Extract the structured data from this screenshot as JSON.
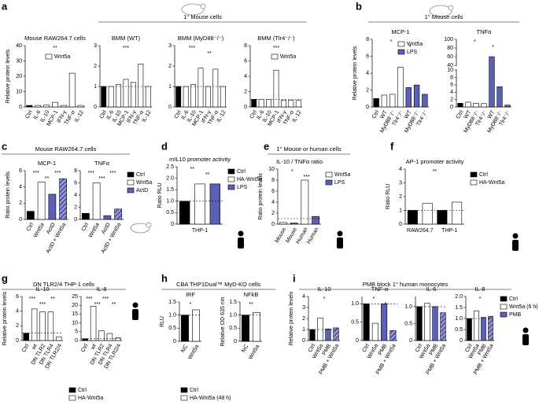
{
  "chart_data": [
    {
      "type": "bar",
      "panel": "a",
      "title": "Mouse RAW264.7 cells",
      "ylabel": "Relative protein levels",
      "categories": [
        "Ctrl",
        "IL-6",
        "IL-10",
        "MCP-1",
        "IFN-γ",
        "TNF-α",
        "IL-12"
      ],
      "values": [
        1,
        1,
        1.2,
        3,
        1,
        22,
        1
      ],
      "colors": [
        "#000000",
        "#ffffff",
        "#ffffff",
        "#ffffff",
        "#ffffff",
        "#ffffff",
        "#ffffff"
      ],
      "ylim": [
        0,
        40
      ],
      "yticks": [
        0,
        10,
        20,
        30,
        40
      ],
      "legend": [
        {
          "name": "Wnt5a",
          "color": "#ffffff"
        }
      ],
      "annotations": [
        "**"
      ]
    },
    {
      "type": "bar",
      "header": "1° Mouse cells",
      "title": "BMM (WT)",
      "categories": [
        "Ctrl",
        "IL-6",
        "IL-10",
        "MCP-1",
        "IFN-γ",
        "TNF-α",
        "IL-12"
      ],
      "values": [
        1,
        1,
        1.1,
        1.35,
        1.2,
        2.1,
        1
      ],
      "colors": [
        "#000000",
        "#ffffff",
        "#ffffff",
        "#ffffff",
        "#ffffff",
        "#ffffff",
        "#ffffff"
      ],
      "ylim": [
        0,
        3
      ],
      "yticks": [
        0,
        1,
        2,
        3
      ],
      "hline": 1,
      "annotations": [
        "***"
      ]
    },
    {
      "type": "bar",
      "title": "BMM (MyD88⁻/⁻)",
      "categories": [
        "Ctrl",
        "IL-6",
        "IL-10",
        "MCP-1",
        "IFN-γ",
        "TNF-α",
        "IL-12"
      ],
      "values": [
        1,
        1,
        1.1,
        1.9,
        1,
        1.85,
        1
      ],
      "colors": [
        "#000000",
        "#ffffff",
        "#ffffff",
        "#ffffff",
        "#ffffff",
        "#ffffff",
        "#ffffff"
      ],
      "ylim": [
        0,
        3
      ],
      "yticks": [
        0,
        1,
        2,
        3
      ],
      "hline": 1,
      "annotations": [
        "***",
        "**"
      ]
    },
    {
      "type": "bar",
      "title": "BMM (Tlr4⁻/⁻)",
      "categories": [
        "Ctrl",
        "IL-6",
        "IL-10",
        "MCP-1",
        "IFN-γ",
        "TNF-α",
        "IL-12"
      ],
      "values": [
        1,
        1,
        1,
        4.8,
        0.9,
        0.9,
        0.85
      ],
      "colors": [
        "#000000",
        "#ffffff",
        "#ffffff",
        "#ffffff",
        "#ffffff",
        "#ffffff",
        "#ffffff"
      ],
      "ylim": [
        0,
        8
      ],
      "yticks": [
        0,
        2,
        4,
        6,
        8
      ],
      "hline": 1,
      "legend": [
        {
          "name": "Wnt5a",
          "color": "#ffffff"
        }
      ],
      "annotations": [
        "***"
      ]
    },
    {
      "type": "bar",
      "panel": "b",
      "header": "1° Mouse cells",
      "title": "MCP-1",
      "ylabel": "Relative protein levels",
      "categories": [
        "Ctrl",
        "WT",
        "MyD88⁻/⁻",
        "Tlr4⁻/⁻",
        "WT",
        "MyD88⁻/⁻",
        "Tlr4⁻/⁻"
      ],
      "values": [
        1,
        1.4,
        1.5,
        4.7,
        2.3,
        2.6,
        1.5
      ],
      "colors": [
        "#000000",
        "#ffffff",
        "#ffffff",
        "#ffffff",
        "#5b5fb5",
        "#5b5fb5",
        "#5b5fb5"
      ],
      "ylim": [
        0,
        8
      ],
      "yticks": [
        0,
        2,
        4,
        6,
        8
      ],
      "legend": [
        {
          "name": "Wnt5a",
          "color": "#ffffff"
        },
        {
          "name": "LPS",
          "color": "#5b5fb5"
        }
      ],
      "annotations": [
        "*",
        "*"
      ]
    },
    {
      "type": "bar",
      "title": "TNFα",
      "categories": [
        "Ctrl",
        "WT",
        "MyD88⁻/⁻",
        "Tlr4⁻/⁻",
        "WT",
        "MyD88⁻/⁻",
        "Tlr4⁻/⁻"
      ],
      "values": [
        1,
        1.3,
        1,
        0.9,
        60,
        5.5,
        0.5
      ],
      "colors": [
        "#000000",
        "#ffffff",
        "#ffffff",
        "#ffffff",
        "#5b5fb5",
        "#5b5fb5",
        "#5b5fb5"
      ],
      "ylim": [
        0,
        100
      ],
      "ybreak": [
        10,
        40
      ],
      "yticks": [
        0,
        2,
        4,
        6,
        8,
        10,
        40,
        60,
        80,
        100
      ],
      "annotations": [
        "*",
        "*"
      ]
    },
    {
      "type": "bar",
      "panel": "c",
      "header": "Mouse RAW264.7 cells",
      "title": "MCP-1",
      "ylabel": "Ratio protein levels",
      "categories": [
        "Ctrl",
        "Wnt5a",
        "ActD",
        "ActD + Wnt5a"
      ],
      "values": [
        1,
        4.6,
        3.1,
        5
      ],
      "colors": [
        "#000000",
        "#ffffff",
        "#5b5fb5",
        "#5b5fb5"
      ],
      "hatched": [
        false,
        false,
        false,
        true
      ],
      "ylim": [
        0,
        6
      ],
      "yticks": [
        0,
        2,
        4,
        6
      ],
      "annotations": [
        "***",
        "**",
        "***"
      ]
    },
    {
      "type": "bar",
      "title": "TNFα",
      "categories": [
        "Ctrl",
        "Wnt5a",
        "ActD",
        "ActD + Wnt5a"
      ],
      "values": [
        1,
        6,
        0.6,
        1.7
      ],
      "colors": [
        "#000000",
        "#ffffff",
        "#5b5fb5",
        "#5b5fb5"
      ],
      "hatched": [
        false,
        false,
        false,
        true
      ],
      "ylim": [
        0,
        8
      ],
      "yticks": [
        0,
        2,
        4,
        6,
        8
      ],
      "legend": [
        {
          "name": "Ctrl",
          "color": "#000000"
        },
        {
          "name": "Wnt5a",
          "color": "#ffffff"
        },
        {
          "name": "ActD",
          "color": "#5b5fb5"
        }
      ],
      "annotations": [
        "***",
        "***",
        "***"
      ]
    },
    {
      "type": "bar",
      "panel": "d",
      "title": "mIL10 promoter activity",
      "ylabel": "Ratio RLU",
      "xlabels": [
        "THP-1"
      ],
      "categories": [
        null,
        null,
        null
      ],
      "values": [
        1,
        1.75,
        1.75
      ],
      "colors": [
        "#000000",
        "#ffffff",
        "#5b5fb5"
      ],
      "ylim": [
        0,
        2.5
      ],
      "yticks": [
        0,
        0.5,
        {
          "value": 1,
          "label": "1.0"
        },
        1.5,
        {
          "value": 2,
          "label": "2.0"
        },
        2.5
      ],
      "hline": 1,
      "legend": [
        {
          "name": "Ctrl",
          "color": "#000000"
        },
        {
          "name": "HA-Wnt5a",
          "color": "#ffffff"
        },
        {
          "name": "LPS",
          "color": "#5b5fb5"
        }
      ],
      "annotations": [
        "**",
        "**"
      ]
    },
    {
      "type": "bar",
      "panel": "e",
      "header": "1° Mouse or human cells",
      "title": "IL-10 / TNFα ratio",
      "ylabel": "Ratio protein levels",
      "categories": [
        "Mouse",
        "Mouse",
        "Human",
        "Human"
      ],
      "values": [
        0.3,
        0.2,
        8,
        1.4
      ],
      "colors": [
        "#ffffff",
        "#5b5fb5",
        "#ffffff",
        "#5b5fb5"
      ],
      "ylim": [
        0,
        10
      ],
      "yticks": [
        0,
        2,
        4,
        6,
        8,
        10
      ],
      "hline": 1,
      "legend": [
        {
          "name": "Wnt5a",
          "color": "#ffffff"
        },
        {
          "name": "LPS",
          "color": "#5b5fb5"
        }
      ],
      "annotations": [
        "*",
        "***"
      ]
    },
    {
      "type": "bar",
      "panel": "f",
      "title": "AP-1 promoter activity",
      "ylabel": "Ratio RLU",
      "xlabels": [
        "RAW264.7",
        "THP-1"
      ],
      "categories": [
        null,
        null,
        null,
        null
      ],
      "values": [
        1,
        1.5,
        1,
        1.6
      ],
      "colors": [
        "#000000",
        "#ffffff",
        "#000000",
        "#ffffff"
      ],
      "ylim": [
        0,
        4
      ],
      "yticks": [
        0,
        1,
        2,
        3,
        4
      ],
      "hline": 1,
      "legend": [
        {
          "name": "Ctrl",
          "color": "#000000"
        },
        {
          "name": "HA-Wnt5a",
          "color": "#ffffff"
        }
      ],
      "annotations": [
        "**"
      ]
    },
    {
      "type": "bar",
      "panel": "g",
      "header": "DN TLR2/4 THP-1 cells",
      "title": "IL-10",
      "ylabel": "Relative protein levels",
      "categories": [
        "Ctrl",
        "wt",
        "DN TLR2",
        "DN TLR4",
        "DN TLR2/4"
      ],
      "values": [
        1,
        4.3,
        3.9,
        3.9,
        0.5
      ],
      "colors": [
        "#000000",
        "#ffffff",
        "#ffffff",
        "#ffffff",
        "#ffffff"
      ],
      "ylim": [
        0,
        6
      ],
      "yticks": [
        0,
        2,
        4,
        6
      ],
      "hline": 1,
      "annotations": [
        "***",
        "***",
        "**"
      ]
    },
    {
      "type": "bar",
      "title": "IL-8",
      "categories": [
        "Ctrl",
        "wt",
        "DN TLR2",
        "DN TLR4",
        "DN TLR2/4"
      ],
      "values": [
        1,
        19.5,
        5.5,
        4,
        1.5
      ],
      "colors": [
        "#000000",
        "#ffffff",
        "#ffffff",
        "#ffffff",
        "#ffffff"
      ],
      "ylim": [
        0,
        25
      ],
      "yticks": [
        0,
        5,
        10,
        15,
        20,
        25
      ],
      "hline": 1,
      "legend": [
        {
          "name": "Ctrl",
          "color": "#000000"
        },
        {
          "name": "HA-Wnt5a",
          "color": "#ffffff"
        }
      ],
      "annotations": [
        "***",
        "***",
        "***",
        "**"
      ]
    },
    {
      "type": "bar",
      "panel": "h",
      "header": "CBA THP1Dual™ MyD-KO cells",
      "title": "IRF",
      "ylabel": "RLU",
      "categories": [
        "NC",
        "Wnt5a"
      ],
      "values": [
        1,
        1.2
      ],
      "colors": [
        "#000000",
        "#ffffff"
      ],
      "ylim": [
        0,
        1.5
      ],
      "yticks": [
        0,
        0.5,
        {
          "value": 1,
          "label": "1.0"
        },
        1.5
      ],
      "hline": 1,
      "legend": [
        {
          "name": "Ctrl",
          "color": "#000000"
        },
        {
          "name": "HA-Wnt5a (48 h)",
          "color": "#ffffff"
        }
      ],
      "annotations": [
        "*"
      ]
    },
    {
      "type": "bar",
      "title": "NFkB",
      "ylabel": "Relative OD 635 nm",
      "categories": [
        "NC",
        "Wnt5a"
      ],
      "values": [
        1,
        1.1
      ],
      "colors": [
        "#000000",
        "#ffffff"
      ],
      "ylim": [
        0,
        1.5
      ],
      "yticks": [
        0,
        0.5,
        {
          "value": 1,
          "label": "1.0"
        },
        1.5
      ],
      "hline": 1,
      "annotations": [
        "**"
      ]
    },
    {
      "type": "bar",
      "panel": "i",
      "header": "PMB block 1° human monocytes",
      "title": "IL-10",
      "ylabel": "Relative protein levels",
      "categories": [
        "Ctrl",
        "Wnt5a",
        "PMB",
        "PMB + Wnt5a"
      ],
      "values": [
        1,
        2.05,
        1.05,
        1.15
      ],
      "colors": [
        "#000000",
        "#ffffff",
        "#5b5fb5",
        "#5b5fb5"
      ],
      "hatched": [
        false,
        false,
        false,
        true
      ],
      "ylim": [
        0,
        4
      ],
      "yticks": [
        0,
        1,
        2,
        3,
        4
      ],
      "hline": 1,
      "annotations": [
        "*"
      ]
    },
    {
      "type": "bar",
      "title": "TNF-α",
      "categories": [
        "Ctrl",
        "Wnt5a",
        "PMB",
        "PMB + Wnt5a"
      ],
      "values": [
        1,
        0.47,
        1,
        0.27
      ],
      "colors": [
        "#000000",
        "#ffffff",
        "#5b5fb5",
        "#5b5fb5"
      ],
      "hatched": [
        false,
        false,
        false,
        true
      ],
      "ylim": [
        0,
        1.2
      ],
      "yticks": [
        0,
        0.5,
        {
          "value": 1,
          "label": "1.0"
        }
      ],
      "hline": 1,
      "annotations": [
        "*",
        "*"
      ]
    },
    {
      "type": "bar",
      "title": "IL-6",
      "categories": [
        "Ctrl",
        "Wnt5a",
        "PMB",
        "PMB + Wnt5a"
      ],
      "values": [
        1,
        1.1,
        1,
        0.82
      ],
      "colors": [
        "#000000",
        "#ffffff",
        "#5b5fb5",
        "#5b5fb5"
      ],
      "hatched": [
        false,
        false,
        false,
        true
      ],
      "ylim": [
        0,
        1.3
      ],
      "yticks": [
        0,
        0.5,
        {
          "value": 1,
          "label": "1.0"
        }
      ],
      "hline": 1
    },
    {
      "type": "bar",
      "title": "IL-8",
      "categories": [
        "Ctrl",
        "Wnt5a",
        "PMB",
        "PMB + Wnt5a"
      ],
      "values": [
        1,
        1.35,
        1.05,
        1.1
      ],
      "colors": [
        "#000000",
        "#ffffff",
        "#5b5fb5",
        "#5b5fb5"
      ],
      "hatched": [
        false,
        false,
        false,
        true
      ],
      "ylim": [
        0,
        2
      ],
      "yticks": [
        0,
        0.5,
        {
          "value": 1,
          "label": "1.0"
        },
        1.5,
        {
          "value": 2,
          "label": "2.0"
        }
      ],
      "hline": 1,
      "legend": [
        {
          "name": "Ctrl",
          "color": "#000000"
        },
        {
          "name": "Wnt5a (6 h)",
          "color": "#ffffff"
        },
        {
          "name": "PMB",
          "color": "#5b5fb5"
        }
      ],
      "annotations": [
        "*"
      ]
    }
  ]
}
